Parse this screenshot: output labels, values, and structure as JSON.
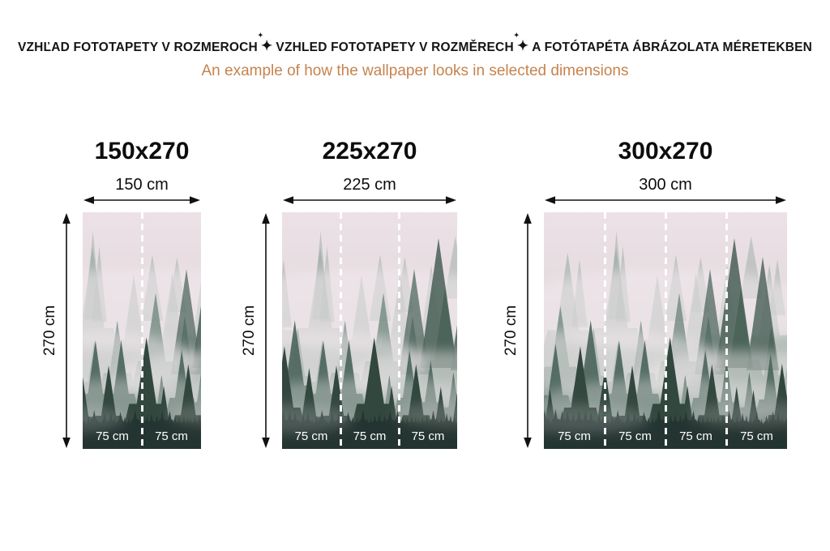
{
  "header": {
    "title_segments": [
      "VZHĽAD FOTOTAPETY V ROZMEROCH",
      "VZHLED FOTOTAPETY V ROZMĚRECH",
      "A FOTÓTAPÉTA ÁBRÁZOLATA MÉRETEKBEN"
    ],
    "separator_glyph": "✦",
    "separator_icon": "sparkle-icon",
    "subtitle": "An example of how the wallpaper looks in selected dimensions",
    "title_color": "#141414",
    "subtitle_color": "#c6834e"
  },
  "previews": [
    {
      "title": "150x270",
      "width_label": "150 cm",
      "height_label": "270 cm",
      "panel_labels": [
        "75 cm",
        "75 cm"
      ]
    },
    {
      "title": "225x270",
      "width_label": "225 cm",
      "height_label": "270 cm",
      "panel_labels": [
        "75 cm",
        "75 cm",
        "75 cm"
      ]
    },
    {
      "title": "300x270",
      "width_label": "300 cm",
      "height_label": "270 cm",
      "panel_labels": [
        "75 cm",
        "75 cm",
        "75 cm",
        "75 cm"
      ]
    }
  ],
  "image": {
    "name": "foggy-forest-wallpaper",
    "palette": {
      "fog_top": "#ece1e6",
      "fog_mid": "#d3d4d3",
      "trees_far": "#93a79d",
      "trees_mid": "#70897e",
      "trees_near": "#4c665c",
      "trees_front": "#32473e",
      "bottom_band": "#2b3b36",
      "divider_line": "#ffffff",
      "arrow_color": "#111111"
    }
  }
}
